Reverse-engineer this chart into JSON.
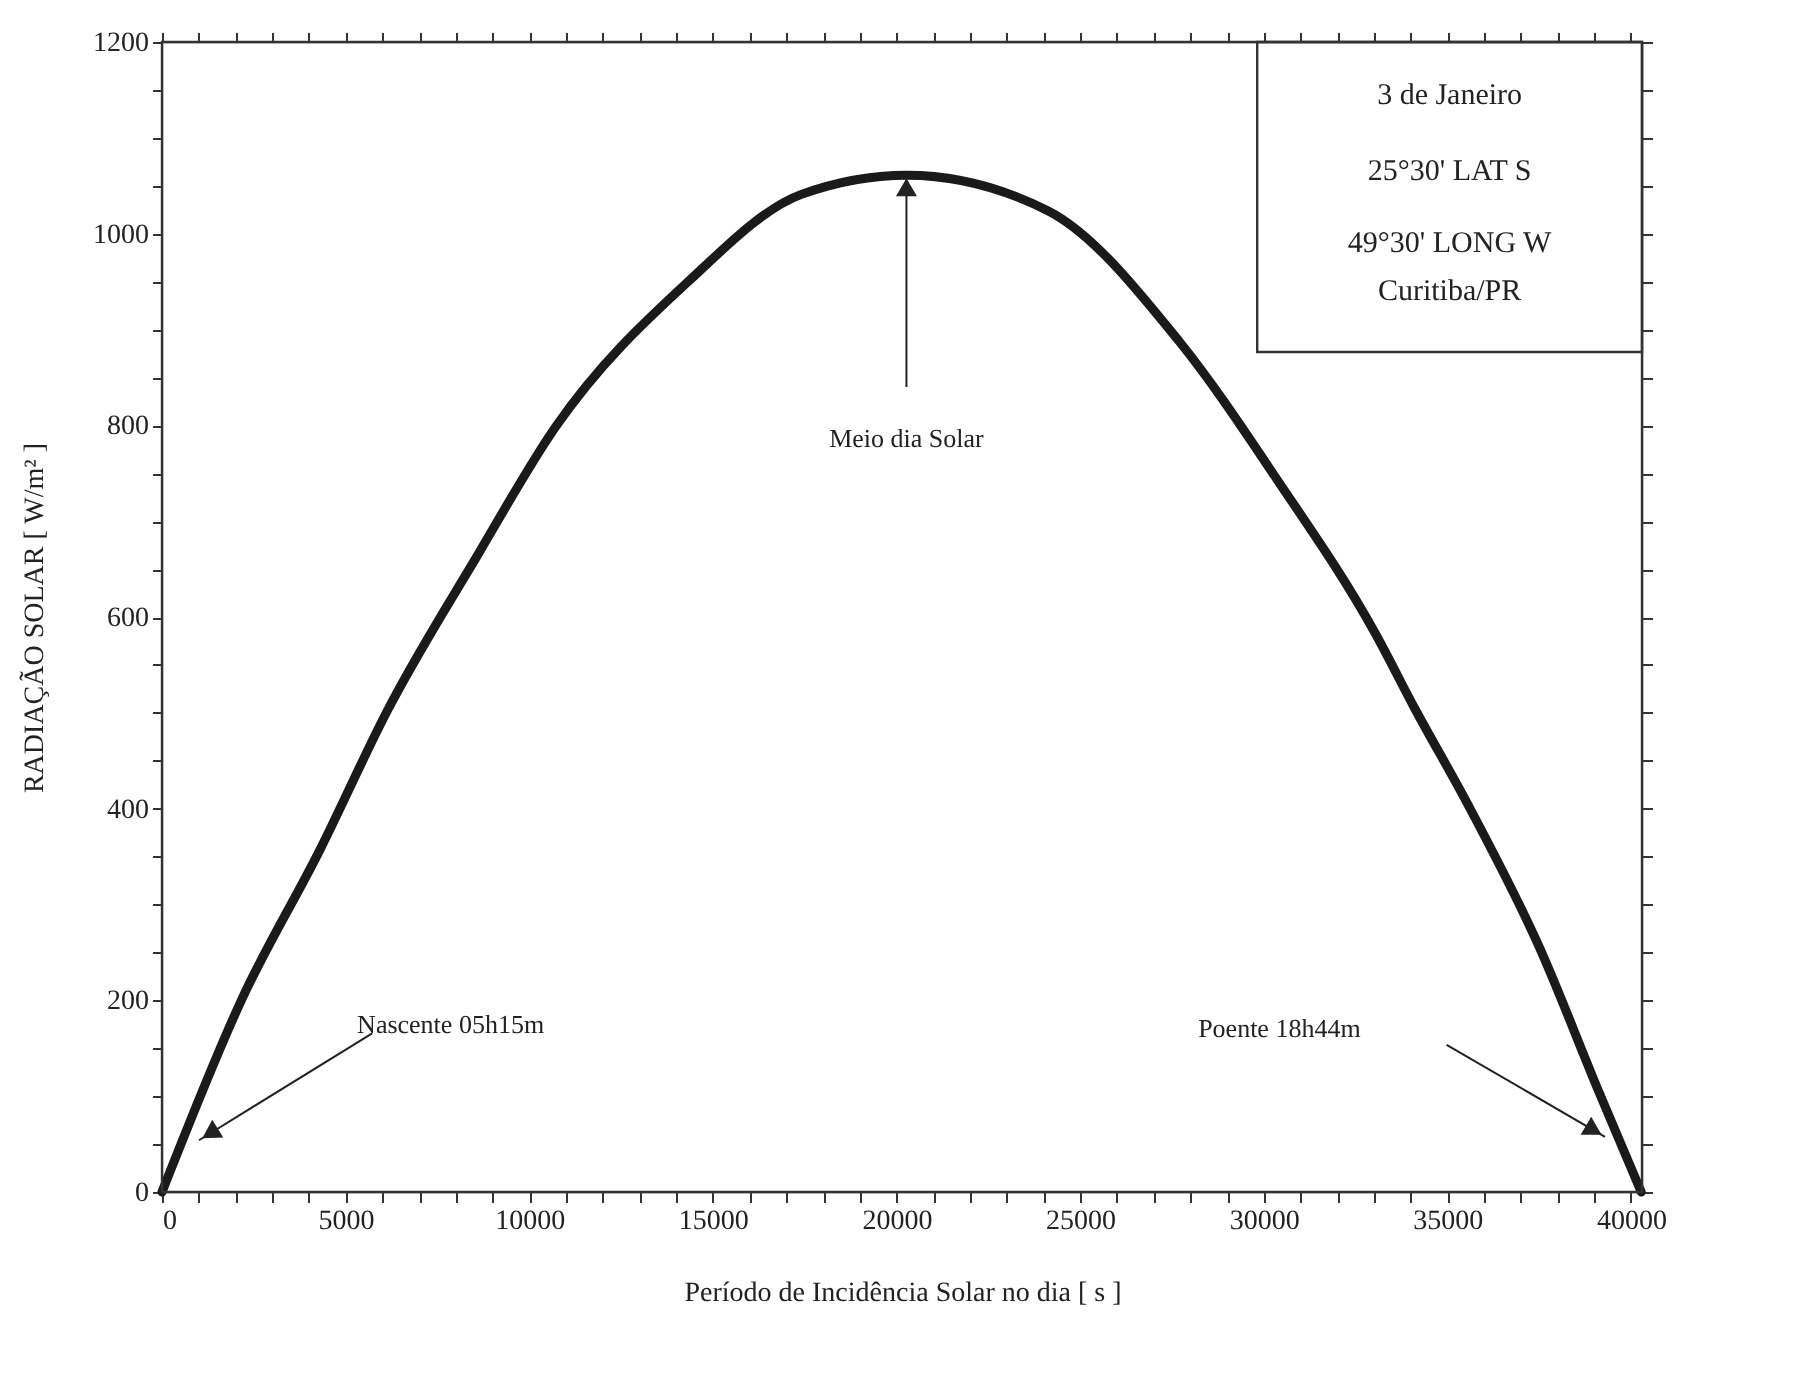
{
  "chart_data": {
    "type": "line",
    "xlabel": "Período de Incidência Solar no dia  [  s  ]",
    "ylabel": "RADIAÇÃO SOLAR [  W/m² ]",
    "x": [
      0,
      2160,
      4300,
      6160,
      8570,
      10710,
      14300,
      17410,
      20285,
      24120,
      27690,
      30370,
      33050,
      34120,
      35550,
      37510,
      39120,
      40280
    ],
    "series": [
      {
        "color": "#1a1a1a",
        "values": [
          0,
          200,
          357,
          504,
          663,
          798,
          949,
          1041,
          1061,
          1024,
          888,
          743,
          582,
          504,
          405,
          255,
          105,
          0
        ]
      }
    ],
    "xlim": [
      0,
      40300
    ],
    "ylim": [
      0,
      1200
    ],
    "xticks": [
      0,
      {
        "value": 1000,
        "label": null
      },
      {
        "value": 2000,
        "label": null
      },
      {
        "value": 3000,
        "label": null
      },
      {
        "value": 4000,
        "label": null
      },
      5000,
      {
        "value": 6000,
        "label": null
      },
      {
        "value": 7000,
        "label": null
      },
      {
        "value": 8000,
        "label": null
      },
      {
        "value": 9000,
        "label": null
      },
      10000,
      {
        "value": 11000,
        "label": null
      },
      {
        "value": 12000,
        "label": null
      },
      {
        "value": 13000,
        "label": null
      },
      {
        "value": 14000,
        "label": null
      },
      15000,
      {
        "value": 16000,
        "label": null
      },
      {
        "value": 17000,
        "label": null
      },
      {
        "value": 18000,
        "label": null
      },
      {
        "value": 19000,
        "label": null
      },
      20000,
      {
        "value": 21000,
        "label": null
      },
      {
        "value": 22000,
        "label": null
      },
      {
        "value": 23000,
        "label": null
      },
      {
        "value": 24000,
        "label": null
      },
      25000,
      {
        "value": 26000,
        "label": null
      },
      {
        "value": 27000,
        "label": null
      },
      {
        "value": 28000,
        "label": null
      },
      {
        "value": 29000,
        "label": null
      },
      30000,
      {
        "value": 31000,
        "label": null
      },
      {
        "value": 32000,
        "label": null
      },
      {
        "value": 33000,
        "label": null
      },
      {
        "value": 34000,
        "label": null
      },
      35000,
      {
        "value": 36000,
        "label": null
      },
      {
        "value": 37000,
        "label": null
      },
      {
        "value": 38000,
        "label": null
      },
      {
        "value": 39000,
        "label": null
      },
      40000
    ],
    "yticks": [
      0,
      {
        "value": 50,
        "label": null
      },
      {
        "value": 100,
        "label": null
      },
      {
        "value": 150,
        "label": null
      },
      200,
      {
        "value": 250,
        "label": null
      },
      {
        "value": 300,
        "label": null
      },
      {
        "value": 350,
        "label": null
      },
      400,
      {
        "value": 450,
        "label": null
      },
      {
        "value": 500,
        "label": null
      },
      {
        "value": 550,
        "label": null
      },
      600,
      {
        "value": 650,
        "label": null
      },
      {
        "value": 700,
        "label": null
      },
      {
        "value": 750,
        "label": null
      },
      800,
      {
        "value": 850,
        "label": null
      },
      {
        "value": 900,
        "label": null
      },
      {
        "value": 950,
        "label": null
      },
      1000,
      {
        "value": 1050,
        "label": null
      },
      {
        "value": 1100,
        "label": null
      },
      {
        "value": 1150,
        "label": null
      },
      1200
    ],
    "grid": false,
    "marker": "none",
    "line_style": "solid",
    "annotations": [
      "Meio dia Solar",
      "Nascente 05h15m",
      "Poente 18h44m",
      "3 de Janeiro",
      "25°30' LAT S",
      "49°30' LONG W",
      "Curitiba/PR"
    ]
  }
}
